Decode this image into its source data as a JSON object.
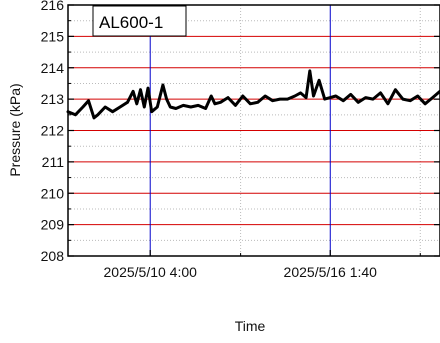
{
  "chart_data": {
    "type": "line",
    "annotation": "AL600-1",
    "xlabel": "Time",
    "ylabel": "Pressure (kPa)",
    "ylim": [
      208,
      216
    ],
    "yticks": [
      208,
      209,
      210,
      211,
      212,
      213,
      214,
      215,
      216
    ],
    "xticks": [
      {
        "label": "2025/5/10 4:00",
        "t": 0.221
      },
      {
        "label": "2025/5/16 1:40",
        "t": 0.705
      }
    ],
    "xminor": [
      0.0,
      0.464,
      0.947
    ],
    "major_vlines_t": [
      0.221,
      0.705
    ],
    "grid": {
      "horizontal_color": "#d40000",
      "vertical_color": "#0000cc",
      "minor_color": "#bbbbbb"
    },
    "series": [
      {
        "color": "#000000",
        "x": [
          0.0,
          0.02,
          0.04,
          0.055,
          0.07,
          0.08,
          0.1,
          0.12,
          0.14,
          0.16,
          0.175,
          0.185,
          0.195,
          0.205,
          0.215,
          0.225,
          0.24,
          0.255,
          0.265,
          0.275,
          0.29,
          0.31,
          0.33,
          0.35,
          0.37,
          0.385,
          0.395,
          0.41,
          0.43,
          0.45,
          0.47,
          0.49,
          0.51,
          0.53,
          0.55,
          0.57,
          0.59,
          0.61,
          0.625,
          0.64,
          0.65,
          0.66,
          0.675,
          0.69,
          0.705,
          0.72,
          0.74,
          0.76,
          0.78,
          0.8,
          0.82,
          0.84,
          0.86,
          0.88,
          0.9,
          0.92,
          0.94,
          0.96,
          0.98,
          1.0
        ],
        "values": [
          212.6,
          212.5,
          212.75,
          212.95,
          212.4,
          212.5,
          212.75,
          212.6,
          212.75,
          212.9,
          213.25,
          212.85,
          213.3,
          212.75,
          213.35,
          212.6,
          212.75,
          213.45,
          213.0,
          212.75,
          212.7,
          212.8,
          212.75,
          212.8,
          212.7,
          213.1,
          212.85,
          212.9,
          213.05,
          212.8,
          213.1,
          212.85,
          212.9,
          213.1,
          212.95,
          213.0,
          213.0,
          213.1,
          213.2,
          213.05,
          213.9,
          213.1,
          213.6,
          213.0,
          213.05,
          213.1,
          212.95,
          213.15,
          212.9,
          213.05,
          213.0,
          213.2,
          212.85,
          213.3,
          213.0,
          212.95,
          213.1,
          212.85,
          213.05,
          213.25
        ]
      }
    ]
  }
}
